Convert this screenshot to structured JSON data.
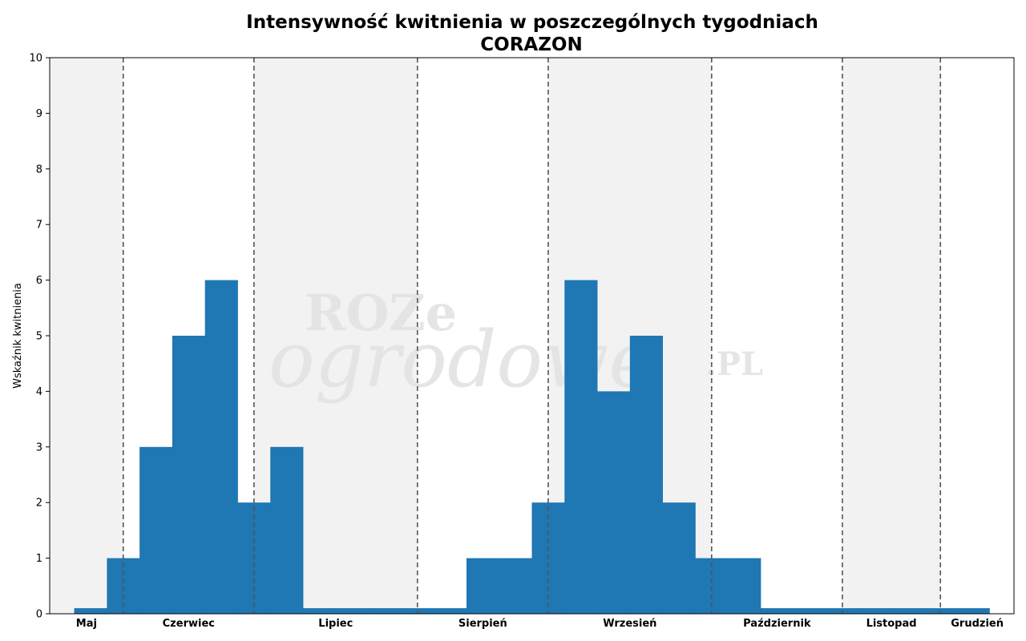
{
  "chart_data": {
    "type": "bar",
    "title": "Intensywność kwitnienia w poszczególnych tygodniach",
    "subtitle": "CORAZON",
    "ylabel": "Wskaźnik kwitnienia",
    "xlabel": "",
    "ylim": [
      0,
      10
    ],
    "yticks": [
      0,
      1,
      2,
      3,
      4,
      5,
      6,
      7,
      8,
      9,
      10
    ],
    "grid": false,
    "bar_color": "#1f77b4",
    "band_color": "#f2f2f2",
    "separator_color": "#555555",
    "months": [
      {
        "label": "Maj",
        "weeks": 2.25,
        "shaded": true
      },
      {
        "label": "Czerwiec",
        "weeks": 4,
        "shaded": false
      },
      {
        "label": "Lipiec",
        "weeks": 5,
        "shaded": true
      },
      {
        "label": "Sierpień",
        "weeks": 4,
        "shaded": false
      },
      {
        "label": "Wrzesień",
        "weeks": 5,
        "shaded": true
      },
      {
        "label": "Październik",
        "weeks": 4,
        "shaded": false
      },
      {
        "label": "Listopad",
        "weeks": 3,
        "shaded": true
      },
      {
        "label": "Grudzień",
        "weeks": 2.25,
        "shaded": false
      }
    ],
    "weeks_start_offset": 1.25,
    "values": [
      0.1,
      1,
      3,
      5,
      6,
      2,
      3,
      0.1,
      0.1,
      0.1,
      0.1,
      0.1,
      1,
      1,
      2,
      6,
      4,
      5,
      2,
      1,
      1,
      0.1,
      0.1,
      0.1,
      0.1,
      0.1,
      0.1,
      0.1
    ]
  },
  "watermark": {
    "line1": "ROZe",
    "line2": "ogrodowe",
    "line3": ".PL"
  }
}
